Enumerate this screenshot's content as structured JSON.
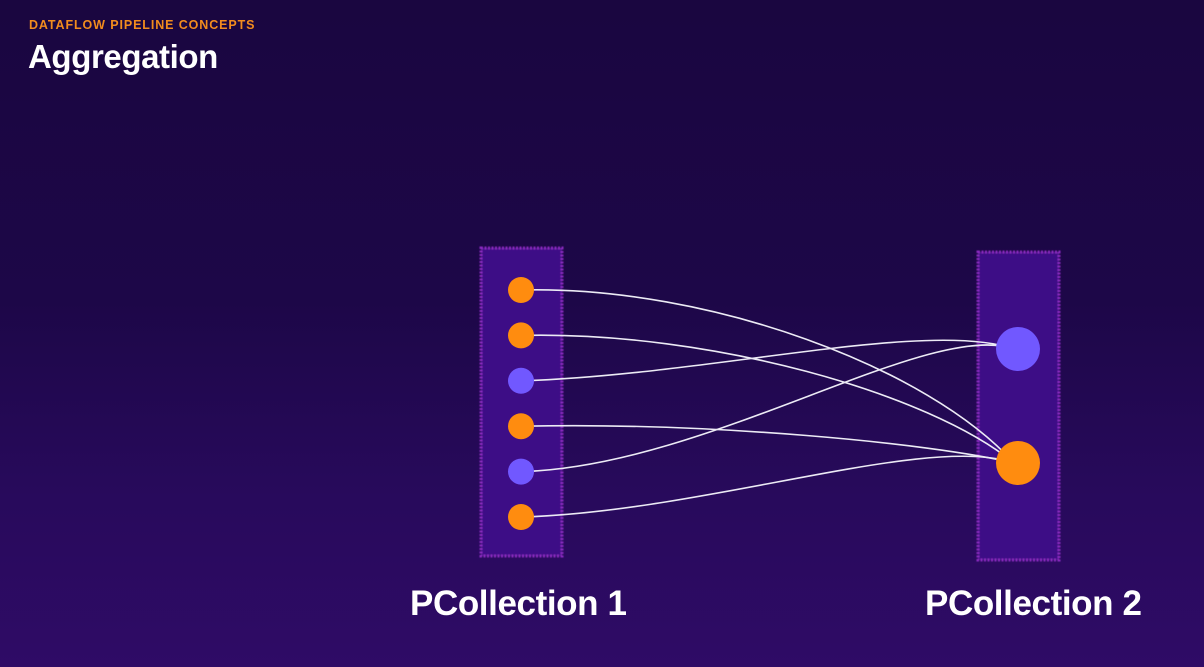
{
  "header": {
    "eyebrow": "DATAFLOW PIPELINE CONCEPTS",
    "title": "Aggregation"
  },
  "colors": {
    "orange": "#ff8c0f",
    "purple": "#7158ff",
    "connector": "#ecebf5",
    "collection_fill": "#3c0c86",
    "collection_border": "#8a2bc0",
    "eyebrow": "#f28c1e"
  },
  "pcollections": [
    {
      "label": "PCollection 1",
      "elements": [
        "orange",
        "orange",
        "purple",
        "orange",
        "purple",
        "orange"
      ]
    },
    {
      "label": "PCollection 2",
      "elements": [
        "purple",
        "orange"
      ]
    }
  ],
  "connections": [
    {
      "from": 0,
      "to": 1
    },
    {
      "from": 1,
      "to": 1
    },
    {
      "from": 2,
      "to": 0
    },
    {
      "from": 3,
      "to": 1
    },
    {
      "from": 4,
      "to": 0
    },
    {
      "from": 5,
      "to": 1
    }
  ]
}
